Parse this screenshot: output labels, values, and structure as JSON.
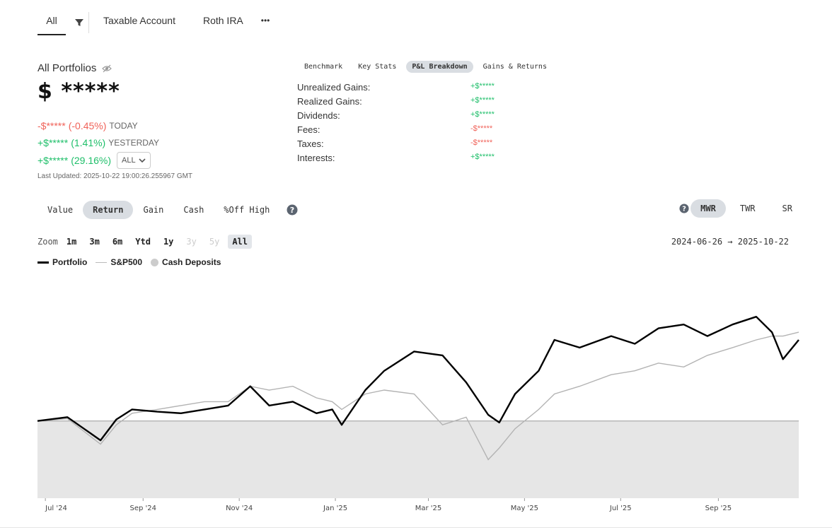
{
  "account_tabs": {
    "all": "All",
    "taxable": "Taxable Account",
    "roth": "Roth IRA",
    "more": "•••"
  },
  "portfolio": {
    "title": "All Portfolios",
    "value": "$ *****",
    "today": {
      "amount": "-$*****",
      "pct": "(-0.45%)",
      "label": "TODAY"
    },
    "yesterday": {
      "amount": "+$*****",
      "pct": "(1.41%)",
      "label": "YESTERDAY"
    },
    "all_time": {
      "amount": "+$*****",
      "pct": "(29.16%)",
      "range": "ALL"
    },
    "last_updated": "Last Updated: 2025-10-22 19:00:26.255967 GMT"
  },
  "breakdown_tabs": [
    "Benchmark",
    "Key Stats",
    "P&L Breakdown",
    "Gains & Returns"
  ],
  "pl_breakdown": [
    {
      "label": "Unrealized Gains:",
      "value": "+$*****",
      "sign": "pos"
    },
    {
      "label": "Realized Gains:",
      "value": "+$*****",
      "sign": "pos"
    },
    {
      "label": "Dividends:",
      "value": "+$*****",
      "sign": "pos"
    },
    {
      "label": "Fees:",
      "value": "-$*****",
      "sign": "neg"
    },
    {
      "label": "Taxes:",
      "value": "-$*****",
      "sign": "neg"
    },
    {
      "label": "Interests:",
      "value": "+$*****",
      "sign": "pos"
    }
  ],
  "metric_tabs": [
    "Value",
    "Return",
    "Gain",
    "Cash",
    "%Off High"
  ],
  "return_tabs": [
    "MWR",
    "TWR",
    "SR"
  ],
  "zoom": {
    "label": "Zoom",
    "options": [
      {
        "label": "1m",
        "state": "enabled"
      },
      {
        "label": "3m",
        "state": "enabled"
      },
      {
        "label": "6m",
        "state": "enabled"
      },
      {
        "label": "Ytd",
        "state": "enabled"
      },
      {
        "label": "1y",
        "state": "enabled"
      },
      {
        "label": "3y",
        "state": "disabled"
      },
      {
        "label": "5y",
        "state": "disabled"
      },
      {
        "label": "All",
        "state": "active"
      }
    ]
  },
  "date_range": "2024-06-26  →  2025-10-22",
  "legend": {
    "portfolio": "Portfolio",
    "sp500": "S&P500",
    "cash": "Cash Deposits"
  },
  "colors": {
    "positive": "#1fbf6a",
    "negative": "#f0635a",
    "portfolio_line": "#000000",
    "benchmark_line": "#b3b3b3",
    "cash_area": "#e6e6e6"
  },
  "chart_data": {
    "type": "line",
    "x_tick_labels": [
      "Jul '24",
      "Sep '24",
      "Nov '24",
      "Jan '25",
      "Mar '25",
      "May '25",
      "Jul '25",
      "Sep '25"
    ],
    "x_start": "2024-06-26",
    "x_end": "2025-10-22",
    "series": [
      {
        "name": "Portfolio",
        "x": [
          "2024-06-26",
          "2024-07-15",
          "2024-08-05",
          "2024-08-15",
          "2024-08-25",
          "2024-09-10",
          "2024-09-25",
          "2024-10-10",
          "2024-10-25",
          "2024-11-08",
          "2024-11-20",
          "2024-12-05",
          "2024-12-20",
          "2024-12-30",
          "2025-01-05",
          "2025-01-20",
          "2025-02-01",
          "2025-02-20",
          "2025-03-10",
          "2025-03-25",
          "2025-04-08",
          "2025-04-15",
          "2025-04-25",
          "2025-05-10",
          "2025-05-20",
          "2025-06-05",
          "2025-06-25",
          "2025-07-10",
          "2025-07-25",
          "2025-08-10",
          "2025-08-25",
          "2025-09-10",
          "2025-09-25",
          "2025-10-05",
          "2025-10-12",
          "2025-10-22"
        ],
        "values": [
          0.0,
          0.5,
          -2.5,
          0.2,
          1.5,
          1.2,
          1.0,
          1.5,
          2.0,
          4.5,
          2.0,
          2.5,
          1.0,
          1.5,
          -0.5,
          4.0,
          6.5,
          9.0,
          8.5,
          5.0,
          0.8,
          -0.2,
          3.5,
          6.5,
          10.5,
          9.5,
          11.0,
          10.0,
          12.0,
          12.5,
          11.0,
          12.5,
          13.5,
          11.5,
          8.0,
          10.5
        ]
      },
      {
        "name": "S&P500",
        "x": [
          "2024-06-26",
          "2024-07-15",
          "2024-08-05",
          "2024-08-15",
          "2024-08-25",
          "2024-09-10",
          "2024-09-25",
          "2024-10-10",
          "2024-10-25",
          "2024-11-08",
          "2024-11-20",
          "2024-12-05",
          "2024-12-20",
          "2024-12-30",
          "2025-01-05",
          "2025-01-20",
          "2025-02-01",
          "2025-02-20",
          "2025-03-10",
          "2025-03-25",
          "2025-04-08",
          "2025-04-15",
          "2025-04-25",
          "2025-05-10",
          "2025-05-20",
          "2025-06-05",
          "2025-06-25",
          "2025-07-10",
          "2025-07-25",
          "2025-08-10",
          "2025-08-25",
          "2025-09-10",
          "2025-09-25",
          "2025-10-05",
          "2025-10-12",
          "2025-10-22"
        ],
        "values": [
          0.0,
          0.3,
          -3.0,
          -0.5,
          1.0,
          1.5,
          2.0,
          2.5,
          2.5,
          4.5,
          4.0,
          4.5,
          3.0,
          2.5,
          1.5,
          3.5,
          4.0,
          3.5,
          -0.5,
          0.5,
          -5.0,
          -3.5,
          -1.0,
          1.5,
          3.5,
          4.5,
          6.0,
          6.5,
          7.5,
          7.0,
          8.5,
          9.5,
          10.5,
          11.0,
          11.0,
          11.5
        ]
      }
    ],
    "baseline": 0,
    "legend_placement": "top-left",
    "grid": false
  }
}
